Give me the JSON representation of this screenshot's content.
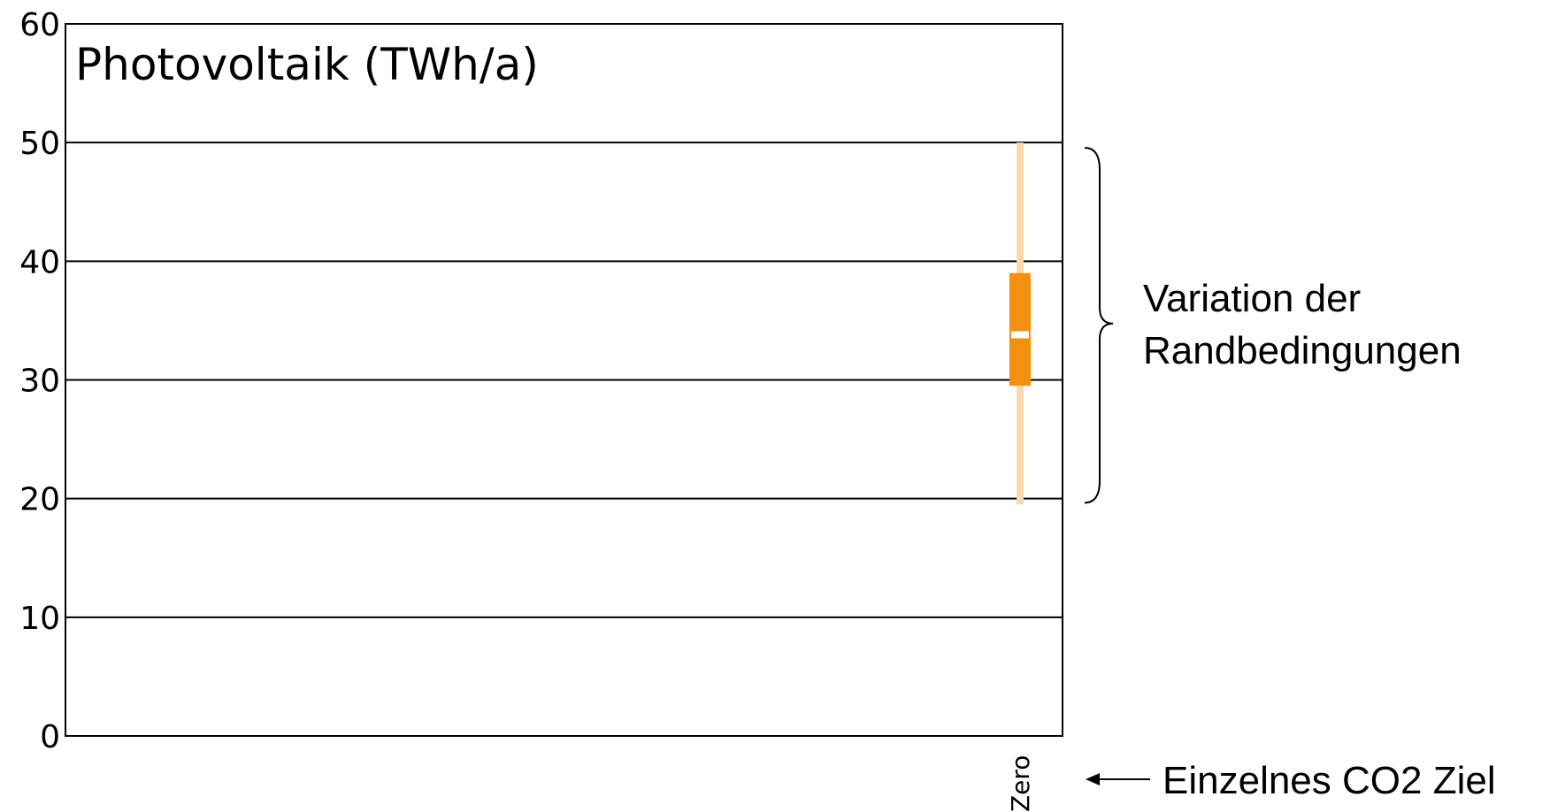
{
  "chart_data": {
    "type": "boxplot",
    "title": "Photovoltaik (TWh/a)",
    "xlabel": "",
    "ylabel": "",
    "ylim": [
      0,
      60
    ],
    "yticks": [
      0,
      10,
      20,
      30,
      40,
      50,
      60
    ],
    "grid": true,
    "categories": [
      "Zero"
    ],
    "series": [
      {
        "category": "Zero",
        "min": 19.5,
        "q1": 29.5,
        "median": 33.8,
        "q3": 39.0,
        "max": 50.0
      }
    ],
    "colors": {
      "box": "#f29111",
      "whisker": "#f8d9ad",
      "median": "#ffffff",
      "grid": "#000000"
    },
    "annotations": {
      "range_label_line1": "Variation der",
      "range_label_line2": "Randbedingungen",
      "target_label": "Einzelnes CO2 Ziel"
    }
  }
}
